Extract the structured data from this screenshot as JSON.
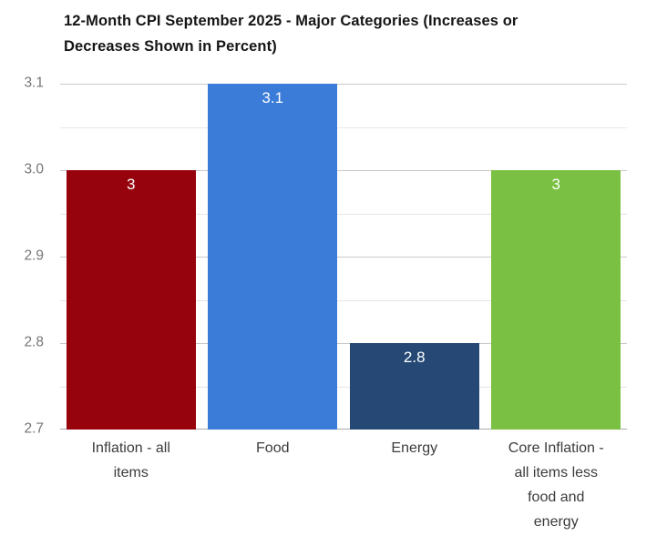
{
  "chart_data": {
    "type": "bar",
    "title": "12-Month CPI September 2025 - Major Categories (Increases or Decreases Shown in Percent)",
    "title_lines": [
      "12-Month CPI September 2025 - Major Categories (Increases or",
      "Decreases Shown in Percent)"
    ],
    "categories": [
      "Inflation - all items",
      "Food",
      "Energy",
      "Core Inflation - all items less food and energy"
    ],
    "values": [
      3,
      3.1,
      2.8,
      3
    ],
    "value_labels": [
      "3",
      "3.1",
      "2.8",
      "3"
    ],
    "bar_colors": [
      "#97030d",
      "#3a7cd8",
      "#254974",
      "#7ac143"
    ],
    "xlabel": "",
    "ylabel": "",
    "ylim": [
      2.7,
      3.1
    ],
    "y_ticks": [
      {
        "value": 3.1,
        "label": "3.1"
      },
      {
        "value": 3.0,
        "label": "3.0"
      },
      {
        "value": 2.9,
        "label": "2.9"
      },
      {
        "value": 2.8,
        "label": "2.8"
      },
      {
        "value": 2.7,
        "label": "2.7"
      }
    ],
    "y_minor_gridlines": [
      3.05,
      2.95,
      2.85,
      2.75
    ],
    "grid": "horizontal",
    "legend": "none",
    "value_label_position": "inside-top"
  },
  "colors": {
    "background": "#ffffff",
    "title_text": "#151515",
    "axis_tick_text": "#757575",
    "category_text": "#3c3c3c",
    "bar_value_text": "#ffffff",
    "major_gridline": "#c9c9c9",
    "minor_gridline": "#e6e6e6",
    "baseline": "#ababab"
  }
}
